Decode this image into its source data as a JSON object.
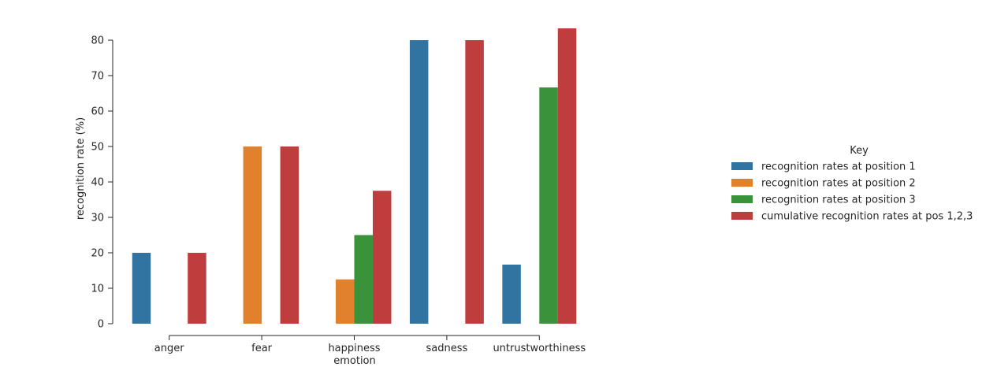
{
  "chart_data": {
    "type": "bar",
    "xlabel": "emotion",
    "ylabel": "recognition rate (%)",
    "ylim": [
      0,
      80
    ],
    "yticks": [
      0,
      10,
      20,
      30,
      40,
      50,
      60,
      70,
      80
    ],
    "categories": [
      "anger",
      "fear",
      "happiness",
      "sadness",
      "untrustworthiness"
    ],
    "series": [
      {
        "name": "recognition rates at position 1",
        "color": "#3274a1",
        "values": [
          20,
          0,
          0,
          80,
          16.67
        ]
      },
      {
        "name": "recognition rates at position 2",
        "color": "#e1812c",
        "values": [
          0,
          50,
          12.5,
          0,
          0
        ]
      },
      {
        "name": "recognition rates at position 3",
        "color": "#3a923a",
        "values": [
          0,
          0,
          25,
          0,
          66.67
        ]
      },
      {
        "name": "cumulative recognition rates at pos 1,2,3",
        "color": "#c03d3e",
        "values": [
          20,
          50,
          37.5,
          80,
          83.33
        ]
      }
    ],
    "legend": {
      "title": "Key",
      "placement": "right"
    },
    "grid": false
  }
}
